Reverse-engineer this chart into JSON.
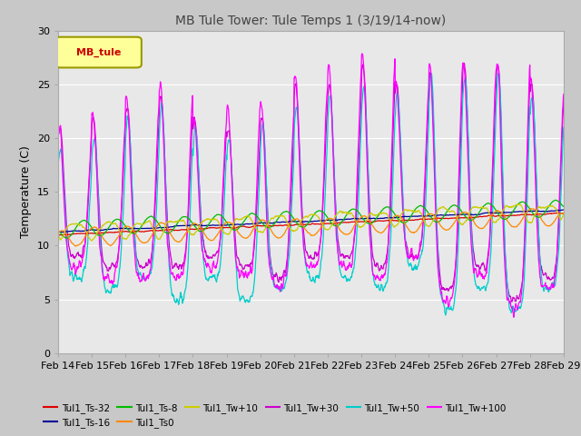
{
  "title": "MB Tule Tower: Tule Temps 1 (3/19/14-now)",
  "ylabel": "Temperature (C)",
  "ylim": [
    0,
    30
  ],
  "yticks": [
    0,
    5,
    10,
    15,
    20,
    25,
    30
  ],
  "fig_bg_color": "#c8c8c8",
  "plot_bg_color": "#e8e8e8",
  "grid_color": "#ffffff",
  "legend_label": "MB_tule",
  "legend_box_color": "#ffff99",
  "legend_box_edge": "#999900",
  "legend_text_color": "#cc0000",
  "series": [
    {
      "name": "Tul1_Ts-32",
      "color": "#dd0000"
    },
    {
      "name": "Tul1_Ts-16",
      "color": "#000099"
    },
    {
      "name": "Tul1_Ts-8",
      "color": "#00bb00"
    },
    {
      "name": "Tul1_Ts0",
      "color": "#ff8800"
    },
    {
      "name": "Tul1_Tw+10",
      "color": "#cccc00"
    },
    {
      "name": "Tul1_Tw+30",
      "color": "#cc00cc"
    },
    {
      "name": "Tul1_Tw+50",
      "color": "#00cccc"
    },
    {
      "name": "Tul1_Tw+100",
      "color": "#ff00ff"
    }
  ],
  "x_labels": [
    "Feb 14",
    "Feb 15",
    "Feb 16",
    "Feb 17",
    "Feb 18",
    "Feb 19",
    "Feb 20",
    "Feb 21",
    "Feb 22",
    "Feb 23",
    "Feb 24",
    "Feb 25",
    "Feb 26",
    "Feb 27",
    "Feb 28",
    "Feb 29"
  ],
  "n_days": 15
}
